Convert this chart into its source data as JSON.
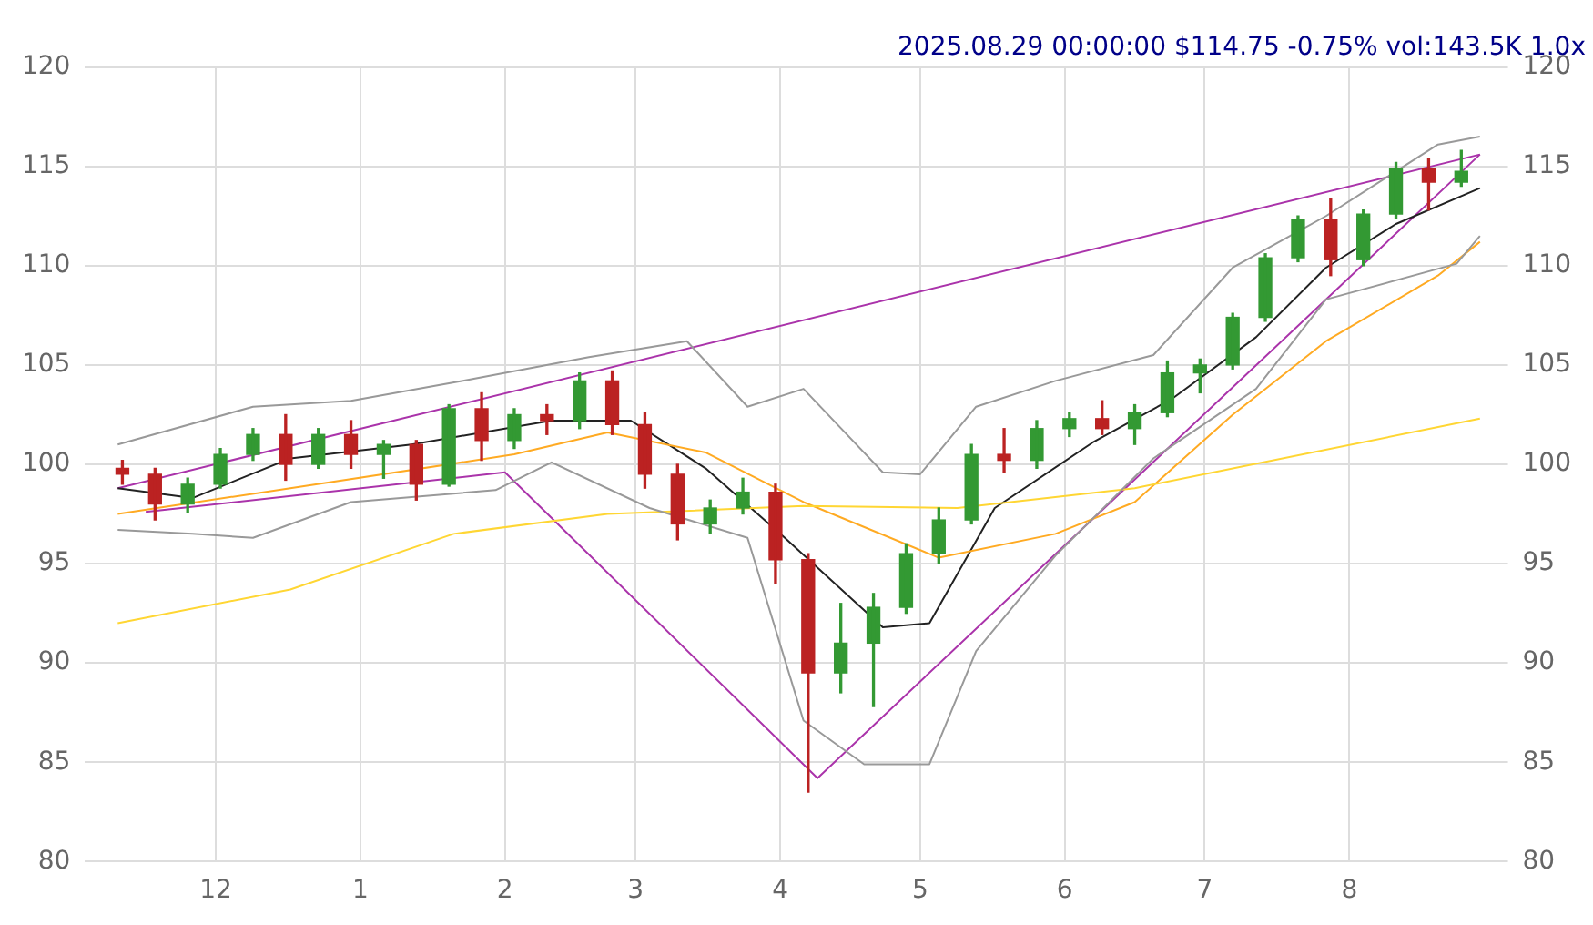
{
  "chart_data": {
    "type": "candlestick",
    "title": "2025.08.29 00:00:00 $114.75 -0.75% vol:143.5K 1.0x",
    "xlim": [
      "2024-11-03",
      "2025-09-04"
    ],
    "xticks": [
      {
        "value": "2024-12-01",
        "label": "12"
      },
      {
        "value": "2025-01-01",
        "label": "1"
      },
      {
        "value": "2025-02-01",
        "label": "2"
      },
      {
        "value": "2025-03-01",
        "label": "3"
      },
      {
        "value": "2025-04-01",
        "label": "4"
      },
      {
        "value": "2025-05-01",
        "label": "5"
      },
      {
        "value": "2025-06-01",
        "label": "6"
      },
      {
        "value": "2025-07-01",
        "label": "7"
      },
      {
        "value": "2025-08-01",
        "label": "8"
      }
    ],
    "ylim": [
      80,
      120
    ],
    "yticks": [
      80,
      85,
      90,
      95,
      100,
      105,
      110,
      115,
      120
    ],
    "y2lim": [
      80,
      120
    ],
    "y2ticks": [
      80,
      85,
      90,
      95,
      100,
      105,
      110,
      115,
      120
    ],
    "grid": true,
    "legend": false,
    "series": [
      {
        "type": "line",
        "color": "#999999",
        "x": [
          "2024-11-10",
          "2024-12-09",
          "2024-12-30",
          "2025-01-23",
          "2025-02-19",
          "2025-03-12",
          "2025-03-25",
          "2025-04-06",
          "2025-04-23",
          "2025-05-01",
          "2025-05-13",
          "2025-05-30",
          "2025-06-20",
          "2025-07-07",
          "2025-07-27",
          "2025-08-20",
          "2025-08-29"
        ],
        "values": [
          101,
          102.9,
          103.2,
          104.2,
          105.4,
          106.2,
          102.9,
          103.8,
          99.6,
          99.5,
          102.9,
          104.2,
          105.5,
          109.9,
          112.5,
          116.1,
          116.5
        ]
      },
      {
        "type": "line",
        "color": "#999999",
        "x": [
          "2024-11-10",
          "2024-11-26",
          "2024-12-09",
          "2024-12-30",
          "2025-01-30",
          "2025-02-11",
          "2025-03-04",
          "2025-03-25",
          "2025-04-06",
          "2025-04-19",
          "2025-05-03",
          "2025-05-13",
          "2025-05-30",
          "2025-06-20",
          "2025-07-12",
          "2025-07-27",
          "2025-08-24",
          "2025-08-29"
        ],
        "values": [
          96.7,
          96.5,
          96.3,
          98.1,
          98.7,
          100.1,
          97.8,
          96.3,
          87.1,
          84.9,
          84.9,
          90.6,
          95.4,
          100.3,
          103.8,
          108.3,
          110.1,
          111.5
        ]
      },
      {
        "type": "line",
        "color": "#ffd633",
        "x": [
          "2024-11-10",
          "2024-12-17",
          "2025-01-21",
          "2025-02-23",
          "2025-04-06",
          "2025-05-09",
          "2025-06-16",
          "2025-08-29"
        ],
        "values": [
          92.0,
          93.7,
          96.5,
          97.5,
          97.9,
          97.8,
          98.8,
          102.3
        ]
      },
      {
        "type": "line",
        "color": "#ffaa22",
        "x": [
          "2024-11-10",
          "2024-12-17",
          "2025-02-03",
          "2025-02-23",
          "2025-03-16",
          "2025-04-06",
          "2025-05-05",
          "2025-05-30",
          "2025-06-16",
          "2025-07-07",
          "2025-07-27",
          "2025-08-20",
          "2025-08-29"
        ],
        "values": [
          97.5,
          98.8,
          100.5,
          101.6,
          100.6,
          98.1,
          95.3,
          96.5,
          98.1,
          102.5,
          106.2,
          109.5,
          111.2
        ]
      },
      {
        "type": "line",
        "color": "#222222",
        "x": [
          "2024-11-10",
          "2024-11-26",
          "2024-12-17",
          "2025-01-12",
          "2025-02-11",
          "2025-02-28",
          "2025-03-16",
          "2025-04-02",
          "2025-04-23",
          "2025-05-03",
          "2025-05-17",
          "2025-06-07",
          "2025-06-24",
          "2025-07-12",
          "2025-07-27",
          "2025-08-11",
          "2025-08-29"
        ],
        "values": [
          98.8,
          98.3,
          100.3,
          101.0,
          102.2,
          102.2,
          99.8,
          96.3,
          91.8,
          92.0,
          97.8,
          101.1,
          103.3,
          106.4,
          109.9,
          112.1,
          113.9
        ]
      },
      {
        "type": "line",
        "color": "#aa33aa",
        "x": [
          "2024-11-10",
          "2025-08-29"
        ],
        "values": [
          98.8,
          115.6
        ]
      },
      {
        "type": "line",
        "color": "#aa33aa",
        "x": [
          "2024-11-16",
          "2025-02-01",
          "2025-04-09",
          "2025-08-29"
        ],
        "values": [
          97.6,
          99.6,
          84.2,
          115.6
        ]
      },
      {
        "x": [
          "2024-11-11",
          "2024-11-18",
          "2024-11-25",
          "2024-12-02",
          "2024-12-09",
          "2024-12-16",
          "2024-12-23",
          "2024-12-30",
          "2025-01-06",
          "2025-01-13",
          "2025-01-20",
          "2025-01-27",
          "2025-02-03",
          "2025-02-10",
          "2025-02-17",
          "2025-02-24",
          "2025-03-03",
          "2025-03-10",
          "2025-03-17",
          "2025-03-24",
          "2025-03-31",
          "2025-04-07",
          "2025-04-14",
          "2025-04-21",
          "2025-04-28",
          "2025-05-05",
          "2025-05-12",
          "2025-05-19",
          "2025-05-26",
          "2025-06-02",
          "2025-06-09",
          "2025-06-16",
          "2025-06-23",
          "2025-06-30",
          "2025-07-07",
          "2025-07-14",
          "2025-07-21",
          "2025-07-28",
          "2025-08-04",
          "2025-08-11",
          "2025-08-18",
          "2025-08-25"
        ],
        "colors": [
          "#bb2222",
          "#bb2222",
          "#339933",
          "#339933",
          "#339933",
          "#bb2222",
          "#339933",
          "#bb2222",
          "#339933",
          "#bb2222",
          "#339933",
          "#bb2222",
          "#339933",
          "#bb2222",
          "#339933",
          "#bb2222",
          "#bb2222",
          "#bb2222",
          "#339933",
          "#339933",
          "#bb2222",
          "#bb2222",
          "#339933",
          "#339933",
          "#339933",
          "#339933",
          "#339933",
          "#bb2222",
          "#339933",
          "#339933",
          "#bb2222",
          "#339933",
          "#339933",
          "#339933",
          "#339933",
          "#339933",
          "#339933",
          "#bb2222",
          "#339933",
          "#339933",
          "#bb2222",
          "#339933"
        ],
        "ohlc": [
          [
            99.8,
            100.2,
            99.0,
            99.5
          ],
          [
            99.5,
            99.8,
            97.2,
            98.0
          ],
          [
            98.0,
            99.3,
            97.6,
            99.0
          ],
          [
            99.0,
            100.8,
            98.8,
            100.5
          ],
          [
            100.5,
            101.8,
            100.2,
            101.5
          ],
          [
            101.5,
            102.5,
            99.2,
            100.0
          ],
          [
            100.0,
            101.8,
            99.8,
            101.5
          ],
          [
            101.5,
            102.2,
            99.8,
            100.5
          ],
          [
            100.5,
            101.2,
            99.3,
            101.0
          ],
          [
            101.0,
            101.2,
            98.2,
            99.0
          ],
          [
            99.0,
            103.0,
            98.9,
            102.8
          ],
          [
            102.8,
            103.6,
            100.2,
            101.2
          ],
          [
            101.2,
            102.8,
            100.8,
            102.5
          ],
          [
            102.5,
            103.0,
            101.5,
            102.2
          ],
          [
            102.2,
            104.6,
            101.8,
            104.2
          ],
          [
            104.2,
            104.7,
            101.5,
            102.0
          ],
          [
            102.0,
            102.6,
            98.8,
            99.5
          ],
          [
            99.5,
            100.0,
            96.2,
            97.0
          ],
          [
            97.0,
            98.2,
            96.5,
            97.8
          ],
          [
            97.8,
            99.3,
            97.5,
            98.6
          ],
          [
            98.6,
            99.0,
            94.0,
            95.2
          ],
          [
            95.2,
            95.5,
            83.5,
            89.5
          ],
          [
            89.5,
            93.0,
            88.5,
            91.0
          ],
          [
            91.0,
            93.5,
            87.8,
            92.8
          ],
          [
            92.8,
            96.0,
            92.5,
            95.5
          ],
          [
            95.5,
            97.8,
            95.0,
            97.2
          ],
          [
            97.2,
            101.0,
            97.0,
            100.5
          ],
          [
            100.5,
            101.8,
            99.6,
            100.2
          ],
          [
            100.2,
            102.2,
            99.8,
            101.8
          ],
          [
            101.8,
            102.6,
            101.4,
            102.3
          ],
          [
            102.3,
            103.2,
            101.5,
            101.8
          ],
          [
            101.8,
            103.0,
            101.0,
            102.6
          ],
          [
            102.6,
            105.2,
            102.4,
            104.6
          ],
          [
            104.6,
            105.3,
            103.6,
            105.0
          ],
          [
            105.0,
            107.6,
            104.8,
            107.4
          ],
          [
            107.4,
            110.6,
            107.2,
            110.4
          ],
          [
            110.4,
            112.5,
            110.2,
            112.3
          ],
          [
            112.3,
            113.4,
            109.5,
            110.3
          ],
          [
            110.3,
            112.8,
            110.0,
            112.6
          ],
          [
            112.6,
            115.2,
            112.4,
            114.9
          ],
          [
            114.9,
            115.4,
            112.8,
            114.2
          ],
          [
            114.2,
            115.8,
            114.0,
            114.75
          ]
        ]
      }
    ]
  }
}
